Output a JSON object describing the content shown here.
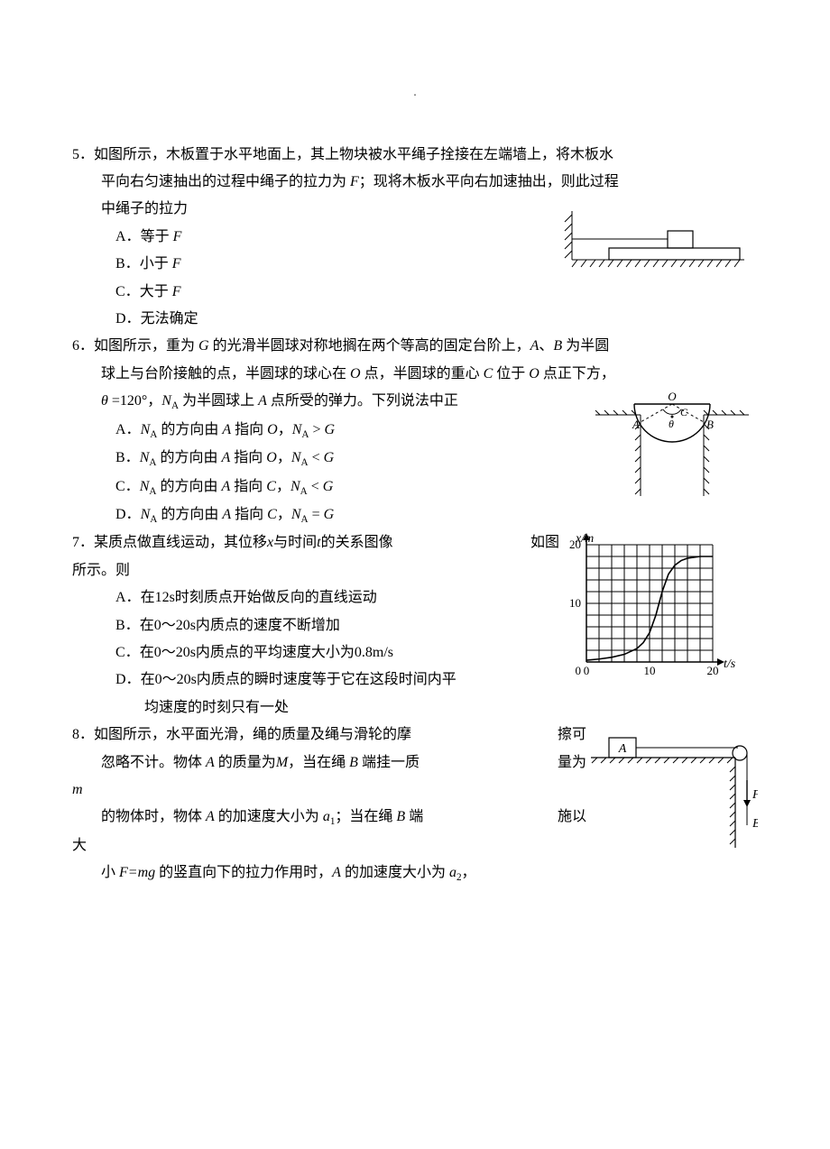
{
  "page_marker": ".",
  "questions": [
    {
      "num": "5．",
      "stem_line1": "如图所示，木板置于水平地面上，其上物块被水平绳子拴接在左端墙上，将木板水",
      "stem_line2_prefix": "平向右匀速抽出的过程中绳子的拉力为 ",
      "stem_line2_var": "F",
      "stem_line2_suffix": "；现将木板水平向右加速抽出，则此过程",
      "stem_line3": "中绳子的拉力",
      "options": [
        {
          "label": "A．",
          "prefix": "等于 ",
          "var": "F"
        },
        {
          "label": "B．",
          "prefix": "小于 ",
          "var": "F"
        },
        {
          "label": "C．",
          "prefix": "大于 ",
          "var": "F"
        },
        {
          "label": "D．",
          "text": "无法确定"
        }
      ],
      "figure": {
        "stroke": "#000000",
        "hatch": "#000000"
      }
    },
    {
      "num": "6．",
      "stem_line1_p1": "如图所示，重为 ",
      "stem_line1_v1": "G",
      "stem_line1_p2": " 的光滑半圆球对称地搁在两个等高的固定台阶上，",
      "stem_line1_v2": "A",
      "stem_line1_p3": "、",
      "stem_line1_v3": "B",
      "stem_line1_p4": " 为半圆",
      "stem_line2_p1": "球上与台阶接触的点，半圆球的球心在 ",
      "stem_line2_v1": "O",
      "stem_line2_p2": " 点，半圆球的重心 ",
      "stem_line2_v2": "C",
      "stem_line2_p3": " 位于 ",
      "stem_line2_v3": "O",
      "stem_line2_p4": " 点正下方，",
      "stem_line3_v1": "θ",
      "stem_line3_p1": " =120°，",
      "stem_line3_v2": "N",
      "stem_line3_sub": "A",
      "stem_line3_p2": " 为半圆球上 ",
      "stem_line3_v3": "A",
      "stem_line3_p3": " 点所受的弹力。下列说法中正",
      "options": [
        {
          "label": "A．",
          "v1": "N",
          "s1": "A",
          "p1": " 的方向由 ",
          "v2": "A",
          "p2": " 指向 ",
          "v3": "O",
          "p3": "，",
          "v4": "N",
          "s4": "A",
          "cmp": " > ",
          "v5": "G"
        },
        {
          "label": "B．",
          "v1": "N",
          "s1": "A",
          "p1": " 的方向由 ",
          "v2": "A",
          "p2": " 指向 ",
          "v3": "O",
          "p3": "，",
          "v4": "N",
          "s4": "A",
          "cmp": " < ",
          "v5": "G"
        },
        {
          "label": "C．",
          "v1": "N",
          "s1": "A",
          "p1": " 的方向由 ",
          "v2": "A",
          "p2": " 指向 ",
          "v3": "C",
          "p3": "，",
          "v4": "N",
          "s4": "A",
          "cmp": " < ",
          "v5": "G"
        },
        {
          "label": "D．",
          "v1": "N",
          "s1": "A",
          "p1": " 的方向由 ",
          "v2": "A",
          "p2": " 指向 ",
          "v3": "C",
          "p3": "，",
          "v4": "N",
          "s4": "A",
          "cmp": " = ",
          "v5": "G"
        }
      ],
      "figure": {
        "stroke": "#000000",
        "label_O": "O",
        "label_C": "C",
        "label_A": "A",
        "label_B": "B",
        "label_theta": "θ"
      }
    },
    {
      "num": "7．",
      "stem_p1": "某质点做直线运动，其位移",
      "stem_v1": "x",
      "stem_p2": "与时间",
      "stem_v2": "t",
      "stem_p3": "的关系图像",
      "stem_tail": "如图",
      "stem_line2": "所示。则",
      "options": [
        {
          "label": "A．",
          "text": "在12s时刻质点开始做反向的直线运动"
        },
        {
          "label": "B．",
          "text": "在0～20s内质点的速度不断增加"
        },
        {
          "label": "C．",
          "text": "在0～20s内质点的平均速度大小为0.8m/s"
        },
        {
          "label": "D．",
          "text_l1": "在0～20s内质点的瞬时速度等于它在这段时间内平",
          "text_l2": "均速度的时刻只有一处"
        }
      ],
      "chart": {
        "type": "line",
        "y_label": "x/m",
        "x_label": "t/s",
        "x_min": 0,
        "x_max": 20,
        "y_min": 0,
        "y_max": 20,
        "x_ticks": [
          0,
          10,
          20
        ],
        "y_ticks": [
          0,
          10,
          20
        ],
        "grid_div_x": 10,
        "grid_div_y": 10,
        "grid_color": "#000000",
        "stroke": "#000000",
        "background": "#ffffff",
        "curve_points": [
          [
            0,
            0.3
          ],
          [
            2,
            0.5
          ],
          [
            4,
            0.8
          ],
          [
            6,
            1.3
          ],
          [
            8,
            2.3
          ],
          [
            9,
            3.3
          ],
          [
            10,
            5
          ],
          [
            11,
            8
          ],
          [
            12,
            12
          ],
          [
            13,
            15
          ],
          [
            14,
            16.5
          ],
          [
            15,
            17.3
          ],
          [
            16,
            17.7
          ],
          [
            18,
            18
          ],
          [
            20,
            18
          ]
        ]
      }
    },
    {
      "num": "8．",
      "stem_l1_p1": "如图所示，水平面光滑，绳的质量及绳与滑轮的摩",
      "stem_l1_tail": "擦可",
      "stem_l2_p1": "忽略不计。物体 ",
      "stem_l2_v1": "A",
      "stem_l2_p2": " 的质量为",
      "stem_l2_v2": "M",
      "stem_l2_p3": "，当在绳 ",
      "stem_l2_v3": "B",
      "stem_l2_p4": " 端挂一质",
      "stem_l2_tail": "量为",
      "stem_l3_v1": "m",
      "stem_l4_p1": "的物体时，物体 ",
      "stem_l4_v1": "A",
      "stem_l4_p2": " 的加速度大小为 ",
      "stem_l4_v2": "a",
      "stem_l4_s2": "1",
      "stem_l4_p3": "；当在绳 ",
      "stem_l4_v3": "B",
      "stem_l4_p4": " 端",
      "stem_l4_tail": "施以",
      "stem_l5": "大",
      "stem_l6_p1": "小 ",
      "stem_l6_v1": "F=mg",
      "stem_l6_p2": " 的竖直向下的拉力作用时，",
      "stem_l6_v2": "A",
      "stem_l6_p3": " 的加速度大小为 ",
      "stem_l6_v3": "a",
      "stem_l6_s3": "2",
      "stem_l6_p4": "，",
      "figure": {
        "stroke": "#000000",
        "label_A": "A",
        "label_B": "B",
        "label_F": "F"
      }
    }
  ]
}
